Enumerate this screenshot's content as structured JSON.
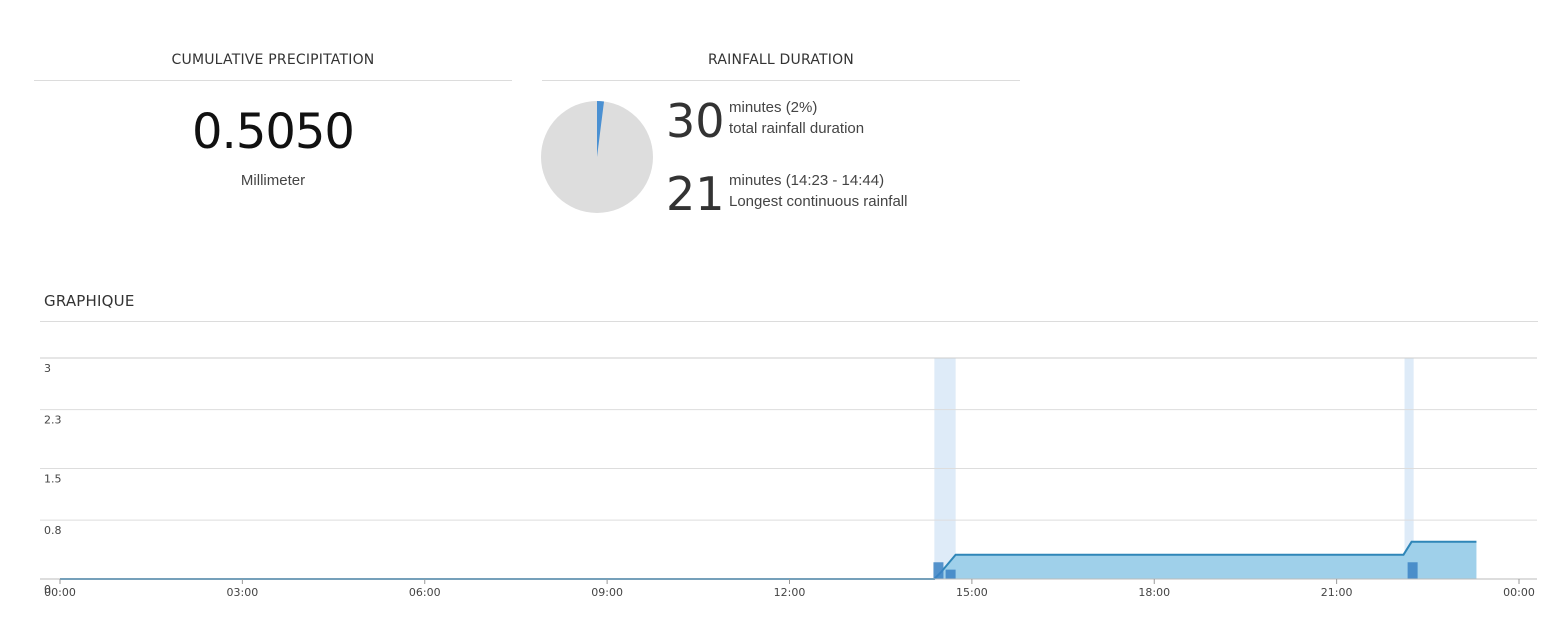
{
  "cumulative": {
    "title": "CUMULATIVE PRECIPITATION",
    "value": "0.5050",
    "unit": "Millimeter"
  },
  "duration": {
    "title": "RAINFALL DURATION",
    "total_value": "30",
    "total_line1": "minutes (2%)",
    "total_line2": "total rainfall duration",
    "longest_value": "21",
    "longest_line1": "minutes (14:23 - 14:44)",
    "longest_line2": "Longest continuous rainfall",
    "pie": {
      "rain_fraction": 0.02,
      "rain_color": "#4a90d2",
      "dry_color": "#dddddd"
    }
  },
  "graph": {
    "title": "GRAPHIQUE"
  },
  "chart_data": {
    "type": "area",
    "x_unit": "hours",
    "ylim": [
      0,
      3
    ],
    "yticks": [
      "3",
      "2.3",
      "1.5",
      "0.8",
      "0"
    ],
    "ytick_values": [
      3,
      2.3,
      1.5,
      0.8,
      0
    ],
    "xlim": [
      0,
      24
    ],
    "xticks": [
      "00:00",
      "03:00",
      "06:00",
      "09:00",
      "12:00",
      "15:00",
      "18:00",
      "21:00",
      "00:00"
    ],
    "xtick_values": [
      0,
      3,
      6,
      9,
      12,
      15,
      18,
      21,
      24
    ],
    "series": [
      {
        "type": "area",
        "x": [
          0,
          14.383,
          14.5,
          14.733,
          22.1,
          22.233,
          23.3
        ],
        "y": [
          0,
          0,
          0.1,
          0.33,
          0.33,
          0.505,
          0.505
        ]
      }
    ],
    "bars": {
      "x": [
        14.45,
        14.65,
        22.25
      ],
      "y": [
        0.2,
        0.1,
        0.2
      ]
    },
    "bands": [
      {
        "from": 14.383,
        "to": 14.733
      },
      {
        "from": 22.117,
        "to": 22.267
      }
    ],
    "colors": {
      "line": "#2f86b8",
      "area": "#9fd0ea",
      "band": "#deebf8",
      "bar": "#3b82c4",
      "grid": "#dddddd"
    }
  }
}
